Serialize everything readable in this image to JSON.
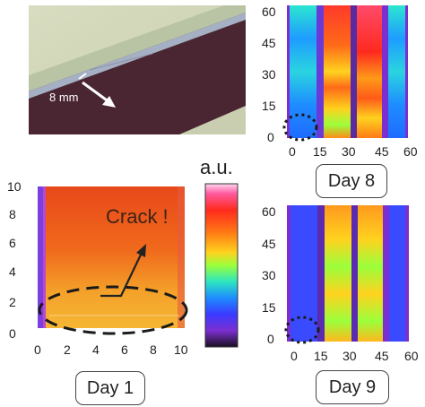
{
  "photo": {
    "scale_label": "8 mm"
  },
  "colorbar": {
    "label": "a.u.",
    "stops": [
      "#ff6fc8",
      "#ff3a2b",
      "#ff7a18",
      "#ffd21e",
      "#9bff3b",
      "#2ce6c0",
      "#1e8cff",
      "#3a3aff",
      "#7b2fd0",
      "#2a1a3a"
    ]
  },
  "day1": {
    "label": "Day 1",
    "annotation": "Crack !",
    "x_ticks": [
      "0",
      "2",
      "4",
      "6",
      "8",
      "10"
    ],
    "y_ticks": [
      "10",
      "8",
      "6",
      "4",
      "2",
      "0"
    ]
  },
  "day8": {
    "label": "Day 8",
    "x_ticks": [
      "0",
      "15",
      "30",
      "45",
      "60"
    ],
    "y_ticks": [
      "60",
      "45",
      "30",
      "15",
      "0"
    ]
  },
  "day9": {
    "label": "Day 9",
    "x_ticks": [
      "0",
      "15",
      "30",
      "45",
      "60"
    ],
    "y_ticks": [
      "60",
      "45",
      "30",
      "15",
      "0"
    ]
  }
}
